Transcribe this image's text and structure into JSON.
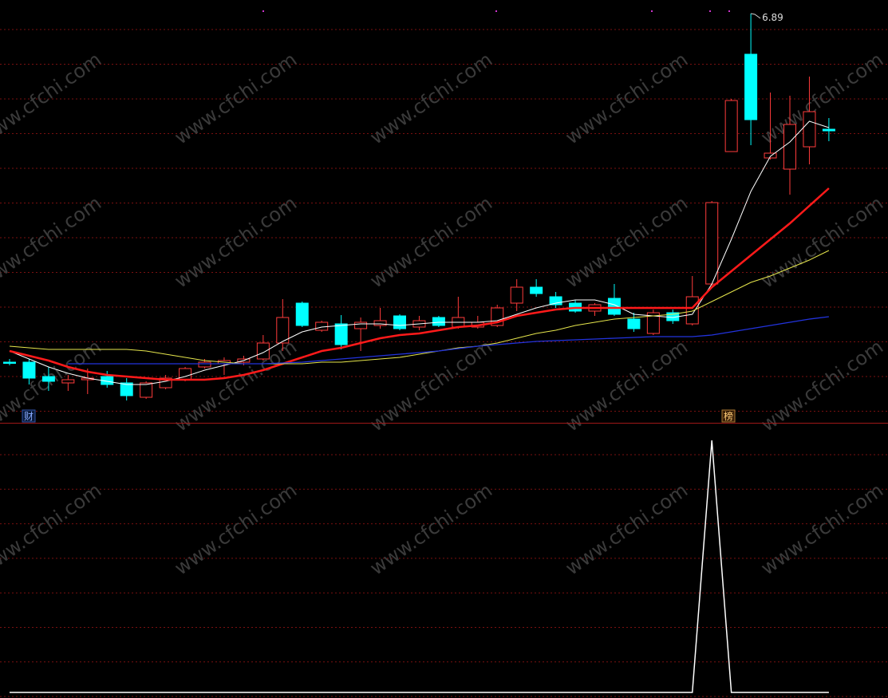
{
  "chart_data": [
    {
      "type": "candlestick",
      "ylim": [
        4.325,
        6.975
      ],
      "up_color": "#ff3b3b",
      "down_color": "#00ffff",
      "open": [
        4.705,
        4.705,
        4.615,
        4.575,
        4.595,
        4.615,
        4.575,
        4.485,
        4.545,
        4.595,
        4.675,
        4.695,
        4.705,
        4.725,
        4.825,
        5.075,
        4.905,
        4.945,
        4.915,
        4.935,
        4.995,
        4.925,
        4.985,
        4.925,
        4.925,
        4.935,
        5.075,
        5.175,
        5.115,
        5.075,
        5.025,
        5.105,
        4.975,
        4.885,
        5.015,
        4.945,
        5.195,
        6.025,
        6.635,
        5.985,
        5.915,
        6.055,
        6.165
      ],
      "high": [
        4.725,
        4.725,
        4.675,
        4.625,
        4.665,
        4.65,
        4.605,
        4.585,
        4.625,
        4.675,
        4.725,
        4.735,
        4.745,
        4.875,
        5.1,
        5.085,
        4.965,
        5.0,
        4.985,
        5.045,
        5.005,
        4.995,
        4.995,
        5.115,
        4.995,
        5.065,
        5.225,
        5.225,
        5.145,
        5.095,
        5.075,
        5.195,
        5.015,
        5.035,
        5.035,
        5.245,
        5.715,
        6.355,
        6.89,
        6.395,
        6.375,
        6.495,
        6.235
      ],
      "low": [
        4.685,
        4.565,
        4.525,
        4.525,
        4.505,
        4.545,
        4.465,
        4.475,
        4.535,
        4.585,
        4.665,
        4.625,
        4.685,
        4.715,
        4.775,
        4.925,
        4.895,
        4.785,
        4.775,
        4.915,
        4.905,
        4.905,
        4.925,
        4.915,
        4.915,
        4.925,
        5.025,
        5.115,
        5.045,
        5.015,
        4.995,
        4.995,
        4.895,
        4.875,
        4.945,
        4.935,
        5.185,
        6.025,
        6.065,
        5.975,
        5.755,
        5.945,
        6.09
      ],
      "close": [
        4.705,
        4.605,
        4.585,
        4.595,
        4.605,
        4.565,
        4.495,
        4.575,
        4.605,
        4.665,
        4.705,
        4.715,
        4.725,
        4.825,
        4.985,
        4.935,
        4.955,
        4.815,
        4.955,
        4.965,
        4.915,
        4.965,
        4.935,
        4.985,
        4.955,
        5.045,
        5.175,
        5.135,
        5.065,
        5.025,
        5.065,
        5.005,
        4.915,
        5.015,
        4.965,
        5.115,
        5.705,
        6.345,
        6.225,
        6.015,
        6.195,
        6.275,
        6.155
      ],
      "series": [
        {
          "color": "#ffffff",
          "width": 1,
          "values": [
            4.775,
            4.725,
            4.675,
            4.635,
            4.605,
            4.585,
            4.565,
            4.565,
            4.585,
            4.615,
            4.655,
            4.685,
            4.715,
            4.765,
            4.835,
            4.895,
            4.925,
            4.935,
            4.945,
            4.945,
            4.935,
            4.945,
            4.955,
            4.955,
            4.955,
            4.965,
            5.005,
            5.045,
            5.075,
            5.095,
            5.095,
            5.065,
            5.005,
            4.995,
            4.985,
            5.005,
            5.195,
            5.475,
            5.775,
            5.995,
            6.085,
            6.215,
            6.175
          ]
        },
        {
          "color": "#ff1a1a",
          "width": 2.5,
          "values": [
            4.775,
            4.745,
            4.715,
            4.675,
            4.645,
            4.625,
            4.615,
            4.605,
            4.595,
            4.595,
            4.595,
            4.605,
            4.625,
            4.655,
            4.695,
            4.735,
            4.775,
            4.795,
            4.825,
            4.855,
            4.875,
            4.885,
            4.905,
            4.925,
            4.935,
            4.955,
            4.995,
            5.015,
            5.035,
            5.045,
            5.045,
            5.045,
            5.045,
            5.045,
            5.045,
            5.045,
            5.175,
            5.275,
            5.375,
            5.475,
            5.575,
            5.685,
            5.795
          ]
        },
        {
          "color": "#e6e64c",
          "width": 1,
          "values": [
            4.805,
            4.795,
            4.785,
            4.785,
            4.785,
            4.785,
            4.785,
            4.775,
            4.755,
            4.735,
            4.715,
            4.705,
            4.695,
            4.695,
            4.695,
            4.695,
            4.705,
            4.705,
            4.715,
            4.725,
            4.735,
            4.755,
            4.775,
            4.795,
            4.805,
            4.825,
            4.855,
            4.885,
            4.905,
            4.935,
            4.955,
            4.975,
            4.985,
            4.995,
            5.005,
            5.025,
            5.085,
            5.145,
            5.205,
            5.245,
            5.295,
            5.345,
            5.405
          ]
        },
        {
          "color": "#2233dd",
          "width": 1.3,
          "values": [
            null,
            null,
            null,
            4.695,
            4.695,
            4.695,
            4.695,
            4.695,
            4.695,
            4.695,
            4.695,
            4.695,
            4.695,
            4.695,
            4.7,
            4.705,
            4.715,
            4.725,
            4.735,
            4.745,
            4.755,
            4.765,
            4.775,
            4.79,
            4.805,
            4.815,
            4.825,
            4.835,
            4.84,
            4.845,
            4.85,
            4.855,
            4.86,
            4.865,
            4.865,
            4.865,
            4.875,
            4.895,
            4.915,
            4.935,
            4.955,
            4.975,
            4.99
          ]
        }
      ]
    },
    {
      "type": "line",
      "ylim": [
        0,
        1
      ],
      "color": "#ffffff",
      "values": [
        0,
        0,
        0,
        0,
        0,
        0,
        0,
        0,
        0,
        0,
        0,
        0,
        0,
        0,
        0,
        0,
        0,
        0,
        0,
        0,
        0,
        0,
        0,
        0,
        0,
        0,
        0,
        0,
        0,
        0,
        0,
        0,
        0,
        0,
        0,
        0,
        1,
        0,
        0,
        0,
        0,
        0,
        0
      ]
    }
  ],
  "badges": [
    "财",
    "榜"
  ],
  "watermark": "www.cfchi.com"
}
